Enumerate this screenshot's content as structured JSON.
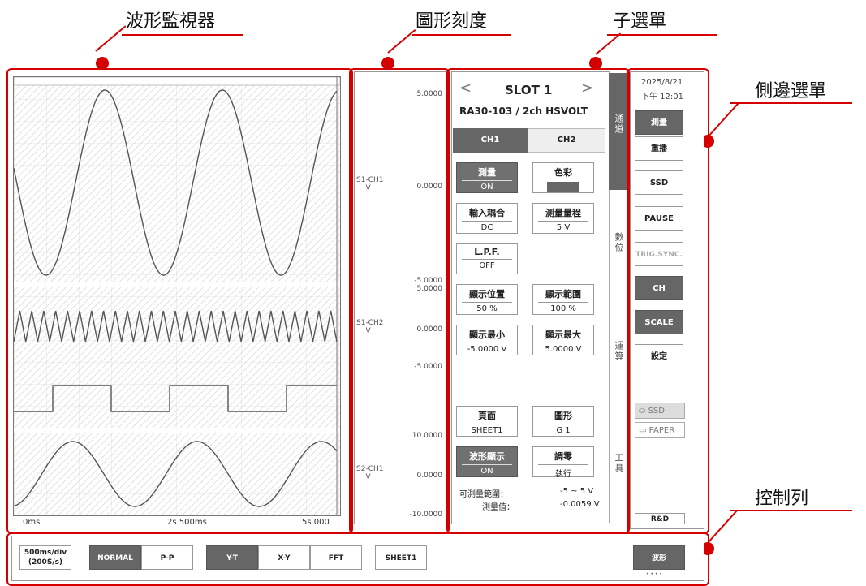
{
  "callouts": {
    "monitor": "波形監視器",
    "scale": "圖形刻度",
    "submenu": "子選單",
    "side_menu": "側邊選單",
    "control_bar": "控制列"
  },
  "colors": {
    "accent": "#d40000",
    "button_dark": "#666666",
    "wave": "#555555"
  },
  "monitor": {
    "time_labels": [
      "0ms",
      "2s 500ms",
      "5s 000"
    ],
    "tracks": [
      {
        "name": "S1-CH1 sine",
        "type": "sine",
        "cycles": 2.75
      },
      {
        "name": "S1-CH2 triangle",
        "type": "triangle",
        "cycles": 27
      },
      {
        "name": "pulse",
        "type": "square"
      },
      {
        "name": "S2-CH1 sine",
        "type": "sine",
        "cycles": 2.6
      }
    ]
  },
  "scale": {
    "top1": "5.0000",
    "mid1": "0.0000",
    "bot1": "-5.0000",
    "top2": "5.0000",
    "mid2": "0.0000",
    "bot2": "-5.0000",
    "top3": "10.0000",
    "mid3": "0.0000",
    "bot3": "-10.0000",
    "ch1_label": "S1-CH1",
    "ch1_unit": "V",
    "ch2_label": "S1-CH2",
    "ch2_unit": "V",
    "ch3_label": "S2-CH1",
    "ch3_unit": "V"
  },
  "submenu": {
    "slot_title": "SLOT 1",
    "prev": "<",
    "next": ">",
    "module": "RA30-103 / 2ch HSVOLT",
    "ch_tabs": [
      "CH1",
      "CH2"
    ],
    "side_tabs": [
      "通道",
      "數位",
      "運算",
      "工具"
    ],
    "params": {
      "measure": {
        "label": "測量",
        "value": "ON"
      },
      "color": {
        "label": "色彩",
        "value": ""
      },
      "coupling": {
        "label": "輸入耦合",
        "value": "DC"
      },
      "range": {
        "label": "測量量程",
        "value": "5 V"
      },
      "lpf": {
        "label": "L.P.F.",
        "value": "OFF"
      },
      "disp_pos": {
        "label": "顯示位置",
        "value": "50 %"
      },
      "disp_range": {
        "label": "顯示範圍",
        "value": "100 %"
      },
      "disp_min": {
        "label": "顯示最小",
        "value": "-5.0000 V"
      },
      "disp_max": {
        "label": "顯示最大",
        "value": "5.0000 V"
      },
      "page": {
        "label": "頁面",
        "value": "SHEET1"
      },
      "graph": {
        "label": "圖形",
        "value": "G 1"
      },
      "wave_disp": {
        "label": "波形顯示",
        "value": "ON"
      },
      "zero": {
        "label": "調零",
        "value": "執行"
      }
    },
    "range_label": "可測量範圍：",
    "range_value": "-5  ~ 5 V",
    "meas_label": "測量值：",
    "meas_value": "-0.0059 V"
  },
  "side": {
    "date": "2025/8/21",
    "time": "下午 12:01",
    "buttons": {
      "measure": "測量",
      "replay": "重播",
      "ssd": "SSD",
      "pause": "PAUSE",
      "trig": "TRIG.SYNC.",
      "ch": "CH",
      "scale": "SCALE",
      "settings": "設定"
    },
    "media_ssd": "SSD",
    "media_paper": "PAPER",
    "rd": "R&D"
  },
  "control": {
    "timebase": "500ms/div",
    "rate": "(200S/s)",
    "normal": "NORMAL",
    "pp": "P-P",
    "yt": "Y-T",
    "xy": "X-Y",
    "fft": "FFT",
    "sheet": "SHEET1",
    "wave": "波形",
    "dots": "• • • •"
  }
}
